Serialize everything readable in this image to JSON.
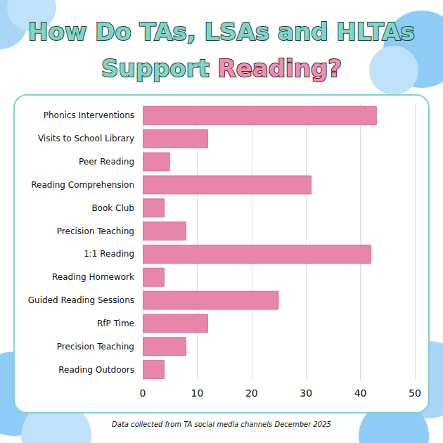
{
  "chart_data": {
    "type": "bar",
    "orientation": "horizontal",
    "title": "How Do TAs, LSAs and HLTAs Support Reading?",
    "categories": [
      "Phonics Interventions",
      "Visits to School Library",
      "Peer Reading",
      "Reading Comprehension",
      "Book Club",
      "Precision Teaching",
      "1:1 Reading",
      "Reading Homework",
      "Guided Reading Sessions",
      "RfP Time",
      "Precision Teaching",
      "Reading Outdoors"
    ],
    "values": [
      43,
      12,
      5,
      31,
      4,
      8,
      42,
      4,
      25,
      12,
      8,
      4
    ],
    "color": "#e785aa",
    "xlim": [
      0,
      50
    ],
    "xticks": [
      0,
      10,
      20,
      30,
      40,
      50
    ],
    "grid": true,
    "annotations": [
      "Data collected from TA social media channels December 2025"
    ]
  }
}
